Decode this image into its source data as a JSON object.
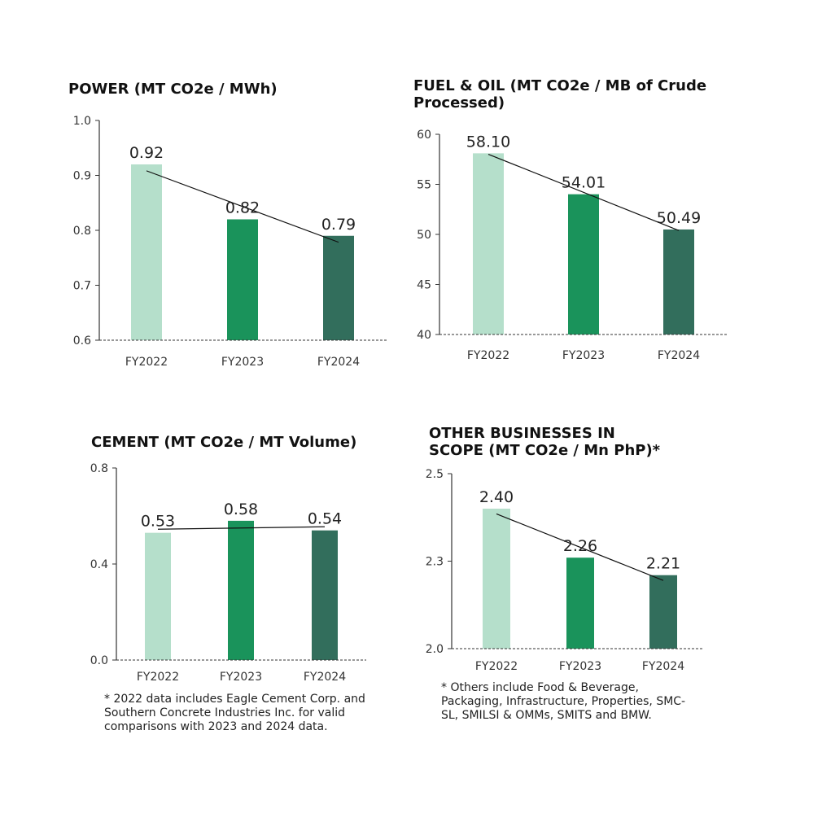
{
  "colors": {
    "fy2022": "#b5dfcb",
    "fy2023": "#1a935b",
    "fy2024": "#326e5c"
  },
  "chart_data": [
    {
      "type": "bar",
      "title": "POWER (MT CO2e / MWh)",
      "categories": [
        "FY2022",
        "FY2023",
        "FY2024"
      ],
      "values": [
        0.92,
        0.82,
        0.79
      ],
      "value_labels": [
        "0.92",
        "0.82",
        "0.79"
      ],
      "ylim": [
        0.6,
        1.0
      ],
      "yticks": [
        0.6,
        0.7,
        0.8,
        0.9,
        1.0
      ],
      "ytick_labels": [
        "0.6",
        "0.7",
        "0.8",
        "0.9",
        "1.0"
      ],
      "trendline": true
    },
    {
      "type": "bar",
      "title": "FUEL & OIL (MT CO2e / MB of Crude Processed)",
      "categories": [
        "FY2022",
        "FY2023",
        "FY2024"
      ],
      "values": [
        58.1,
        54.01,
        50.49
      ],
      "value_labels": [
        "58.10",
        "54.01",
        "50.49"
      ],
      "ylim": [
        40,
        60
      ],
      "yticks": [
        40,
        45,
        50,
        55,
        60
      ],
      "ytick_labels": [
        "40",
        "45",
        "50",
        "55",
        "60"
      ],
      "trendline": true
    },
    {
      "type": "bar",
      "title": "CEMENT (MT CO2e / MT Volume)",
      "categories": [
        "FY2022",
        "FY2023",
        "FY2024"
      ],
      "values": [
        0.53,
        0.58,
        0.54
      ],
      "value_labels": [
        "0.53",
        "0.58",
        "0.54"
      ],
      "ylim": [
        0.0,
        0.8
      ],
      "yticks": [
        0.0,
        0.4,
        0.8
      ],
      "ytick_labels": [
        "0.0",
        "0.4",
        "0.8"
      ],
      "trendline": true,
      "footnote": "* 2022 data includes Eagle Cement Corp. and Southern Concrete Industries Inc. for valid comparisons with 2023 and 2024 data."
    },
    {
      "type": "bar",
      "title": "OTHER BUSINESSES IN SCOPE (MT CO2e / Mn PhP)*",
      "categories": [
        "FY2022",
        "FY2023",
        "FY2024"
      ],
      "values": [
        2.4,
        2.26,
        2.21
      ],
      "value_labels": [
        "2.40",
        "2.26",
        "2.21"
      ],
      "ylim": [
        2.0,
        2.5
      ],
      "yticks": [
        2.0,
        2.25,
        2.5
      ],
      "ytick_labels": [
        "2.0",
        "2.3",
        "2.5"
      ],
      "trendline": true,
      "footnote": "* Others include Food & Beverage, Packaging, Infrastructure, Properties, SMC-SL, SMILSI & OMMs, SMITS and BMW."
    }
  ]
}
